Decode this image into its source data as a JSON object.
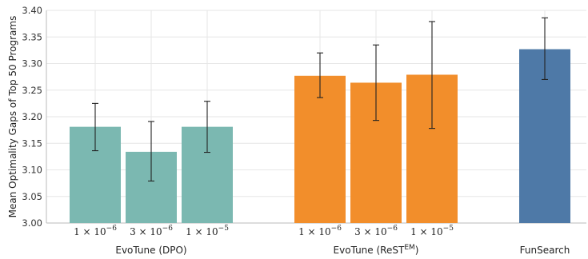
{
  "chart_data": {
    "type": "bar",
    "ylabel": "Mean Optimality Gaps of Top 50 Programs",
    "ylim": [
      3.0,
      3.4
    ],
    "yticks": [
      "3.00",
      "3.05",
      "3.10",
      "3.15",
      "3.20",
      "3.25",
      "3.30",
      "3.35",
      "3.40"
    ],
    "grid": true,
    "groups": [
      {
        "label": "EvoTune (DPO)",
        "label_sup": "",
        "color": "#7bb8b1",
        "bars": [
          {
            "lr_mant": "1",
            "lr_exp": "−6",
            "value": 3.181,
            "err_low": 3.136,
            "err_high": 3.225
          },
          {
            "lr_mant": "3",
            "lr_exp": "−6",
            "value": 3.134,
            "err_low": 3.079,
            "err_high": 3.191
          },
          {
            "lr_mant": "1",
            "lr_exp": "−5",
            "value": 3.181,
            "err_low": 3.133,
            "err_high": 3.229
          }
        ]
      },
      {
        "label": "EvoTune (ReST",
        "label_sup": "EM",
        "label_suffix": ")",
        "color": "#f28e2b",
        "bars": [
          {
            "lr_mant": "1",
            "lr_exp": "−6",
            "value": 3.277,
            "err_low": 3.236,
            "err_high": 3.32
          },
          {
            "lr_mant": "3",
            "lr_exp": "−6",
            "value": 3.264,
            "err_low": 3.193,
            "err_high": 3.335
          },
          {
            "lr_mant": "1",
            "lr_exp": "−5",
            "value": 3.279,
            "err_low": 3.178,
            "err_high": 3.379
          }
        ]
      },
      {
        "label": "FunSearch",
        "label_sup": "",
        "color": "#4e79a7",
        "bars": [
          {
            "lr_mant": "",
            "lr_exp": "",
            "value": 3.327,
            "err_low": 3.27,
            "err_high": 3.386
          }
        ]
      }
    ],
    "times_symbol": "×",
    "base": "10"
  }
}
